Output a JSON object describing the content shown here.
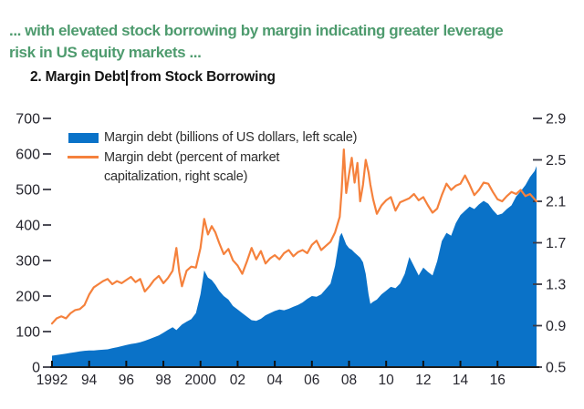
{
  "header": {
    "headline_line1": "... with elevated stock borrowing by margin indicating greater leverage",
    "headline_line2": "risk in US equity markets ...",
    "headline_color": "#4e9b6e",
    "title_before_caret": "2. Margin Debt",
    "title_after_caret": "from Stock Borrowing"
  },
  "legend": {
    "series1_label": "Margin debt (billions of US dollars, left scale)",
    "series2_label_line1": "Margin debt (percent of market",
    "series2_label_line2": "capitalization, right scale)"
  },
  "colors": {
    "area_blue": "#0a72c8",
    "line_orange": "#f5813c",
    "axis_text": "#26262e",
    "axis_line": "#1a1a1a"
  },
  "chart_data": {
    "type": "area",
    "title": "2. Margin Debt from Stock Borrowing",
    "series": [
      {
        "name": "Margin debt (billions of US dollars, left scale)",
        "type": "area",
        "axis": "left",
        "color": "#0a72c8"
      },
      {
        "name": "Margin debt (percent of market capitalization, right scale)",
        "type": "line",
        "axis": "right",
        "color": "#f5813c"
      }
    ],
    "columns": [
      "year",
      "margin_debt_billions_usd",
      "margin_debt_pct_market_cap"
    ],
    "points": [
      [
        1992.0,
        32,
        0.92
      ],
      [
        1992.25,
        34,
        0.97
      ],
      [
        1992.5,
        36,
        0.99
      ],
      [
        1992.75,
        38,
        0.97
      ],
      [
        1993.0,
        40,
        1.02
      ],
      [
        1993.25,
        42,
        1.05
      ],
      [
        1993.5,
        44,
        1.06
      ],
      [
        1993.75,
        46,
        1.1
      ],
      [
        1994.0,
        47,
        1.2
      ],
      [
        1994.25,
        47,
        1.27
      ],
      [
        1994.5,
        48,
        1.3
      ],
      [
        1994.75,
        49,
        1.33
      ],
      [
        1995.0,
        50,
        1.35
      ],
      [
        1995.25,
        53,
        1.3
      ],
      [
        1995.5,
        56,
        1.33
      ],
      [
        1995.75,
        59,
        1.31
      ],
      [
        1996.0,
        62,
        1.34
      ],
      [
        1996.25,
        65,
        1.37
      ],
      [
        1996.5,
        67,
        1.32
      ],
      [
        1996.75,
        70,
        1.35
      ],
      [
        1997.0,
        74,
        1.23
      ],
      [
        1997.25,
        79,
        1.28
      ],
      [
        1997.5,
        84,
        1.34
      ],
      [
        1997.75,
        89,
        1.38
      ],
      [
        1998.0,
        97,
        1.31
      ],
      [
        1998.25,
        105,
        1.36
      ],
      [
        1998.5,
        112,
        1.43
      ],
      [
        1998.7,
        104,
        1.65
      ],
      [
        1998.85,
        112,
        1.42
      ],
      [
        1999.0,
        120,
        1.28
      ],
      [
        1999.25,
        128,
        1.43
      ],
      [
        1999.5,
        135,
        1.47
      ],
      [
        1999.75,
        152,
        1.46
      ],
      [
        2000.0,
        205,
        1.65
      ],
      [
        2000.2,
        272,
        1.93
      ],
      [
        2000.4,
        252,
        1.78
      ],
      [
        2000.6,
        245,
        1.86
      ],
      [
        2000.8,
        232,
        1.8
      ],
      [
        2001.0,
        215,
        1.7
      ],
      [
        2001.25,
        200,
        1.59
      ],
      [
        2001.5,
        190,
        1.64
      ],
      [
        2001.75,
        172,
        1.53
      ],
      [
        2002.0,
        162,
        1.48
      ],
      [
        2002.25,
        152,
        1.4
      ],
      [
        2002.5,
        142,
        1.52
      ],
      [
        2002.75,
        132,
        1.65
      ],
      [
        2003.0,
        130,
        1.54
      ],
      [
        2003.25,
        136,
        1.62
      ],
      [
        2003.5,
        146,
        1.5
      ],
      [
        2003.75,
        152,
        1.55
      ],
      [
        2004.0,
        158,
        1.58
      ],
      [
        2004.25,
        162,
        1.54
      ],
      [
        2004.5,
        160,
        1.6
      ],
      [
        2004.75,
        164,
        1.63
      ],
      [
        2005.0,
        170,
        1.57
      ],
      [
        2005.25,
        175,
        1.61
      ],
      [
        2005.5,
        182,
        1.63
      ],
      [
        2005.75,
        192,
        1.6
      ],
      [
        2006.0,
        200,
        1.68
      ],
      [
        2006.25,
        198,
        1.72
      ],
      [
        2006.5,
        205,
        1.63
      ],
      [
        2006.75,
        220,
        1.67
      ],
      [
        2007.0,
        235,
        1.71
      ],
      [
        2007.25,
        285,
        1.8
      ],
      [
        2007.5,
        368,
        1.95
      ],
      [
        2007.6,
        378,
        2.2
      ],
      [
        2007.72,
        362,
        2.6
      ],
      [
        2007.85,
        345,
        2.18
      ],
      [
        2008.0,
        335,
        2.36
      ],
      [
        2008.15,
        330,
        2.52
      ],
      [
        2008.3,
        322,
        2.28
      ],
      [
        2008.45,
        315,
        2.47
      ],
      [
        2008.6,
        308,
        2.1
      ],
      [
        2008.75,
        295,
        2.26
      ],
      [
        2008.9,
        262,
        2.5
      ],
      [
        2009.05,
        205,
        2.38
      ],
      [
        2009.15,
        178,
        2.26
      ],
      [
        2009.3,
        184,
        2.12
      ],
      [
        2009.5,
        190,
        1.98
      ],
      [
        2009.75,
        205,
        2.06
      ],
      [
        2010.0,
        215,
        2.11
      ],
      [
        2010.25,
        226,
        2.14
      ],
      [
        2010.5,
        222,
        2.01
      ],
      [
        2010.75,
        235,
        2.09
      ],
      [
        2011.0,
        262,
        2.11
      ],
      [
        2011.25,
        310,
        2.13
      ],
      [
        2011.5,
        284,
        2.17
      ],
      [
        2011.75,
        258,
        2.11
      ],
      [
        2012.0,
        280,
        2.14
      ],
      [
        2012.25,
        268,
        2.06
      ],
      [
        2012.5,
        258,
        1.99
      ],
      [
        2012.75,
        298,
        2.03
      ],
      [
        2013.0,
        355,
        2.16
      ],
      [
        2013.25,
        378,
        2.27
      ],
      [
        2013.5,
        370,
        2.21
      ],
      [
        2013.75,
        405,
        2.25
      ],
      [
        2014.0,
        428,
        2.27
      ],
      [
        2014.25,
        440,
        2.35
      ],
      [
        2014.5,
        452,
        2.26
      ],
      [
        2014.75,
        445,
        2.16
      ],
      [
        2015.0,
        458,
        2.21
      ],
      [
        2015.25,
        468,
        2.28
      ],
      [
        2015.5,
        460,
        2.27
      ],
      [
        2015.75,
        442,
        2.19
      ],
      [
        2016.0,
        428,
        2.12
      ],
      [
        2016.25,
        432,
        2.1
      ],
      [
        2016.5,
        445,
        2.15
      ],
      [
        2016.75,
        455,
        2.19
      ],
      [
        2017.0,
        480,
        2.17
      ],
      [
        2017.25,
        495,
        2.21
      ],
      [
        2017.5,
        512,
        2.15
      ],
      [
        2017.75,
        535,
        2.17
      ],
      [
        2018.0,
        552,
        2.12
      ],
      [
        2018.1,
        566,
        2.1
      ]
    ],
    "left_axis": {
      "min": 0,
      "max": 700,
      "tick_values": [
        700,
        600,
        500,
        400,
        300,
        200,
        100,
        0
      ],
      "tick_labels": [
        "700",
        "600",
        "500",
        "400",
        "300",
        "200",
        "100",
        "0"
      ]
    },
    "right_axis": {
      "min": 0.5,
      "max": 2.9,
      "tick_values": [
        2.9,
        2.5,
        2.1,
        1.7,
        1.3,
        0.9,
        0.5
      ],
      "tick_labels": [
        "2.9",
        "2.5",
        "2.1",
        "1.7",
        "1.3",
        "0.9",
        "0.5"
      ]
    },
    "x_axis": {
      "min_year": 1992,
      "max_year": 2018.2,
      "tick_years": [
        1992,
        1994,
        1996,
        1998,
        2000,
        2002,
        2004,
        2006,
        2008,
        2010,
        2012,
        2014,
        2016
      ],
      "tick_labels": [
        "1992",
        "94",
        "96",
        "98",
        "2000",
        "02",
        "04",
        "06",
        "08",
        "10",
        "12",
        "14",
        "16"
      ]
    },
    "grid": false,
    "legend_position": "inside-top-left"
  }
}
